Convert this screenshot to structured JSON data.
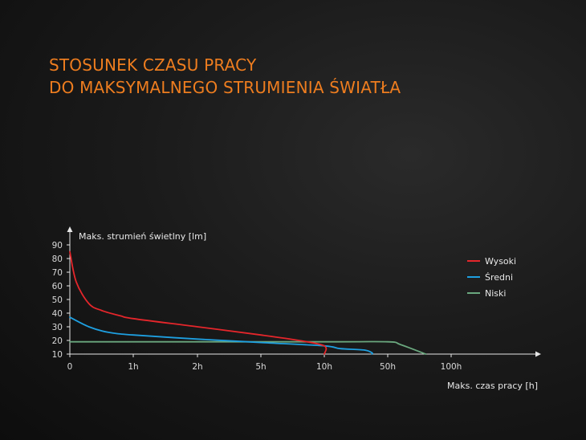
{
  "chart_data": {
    "type": "line",
    "title_lines": [
      "STOSUNEK CZASU PRACY",
      "DO MAKSYMALNEGO STRUMIENIA ŚWIATŁA"
    ],
    "xlabel": "Maks. czas pracy [h]",
    "ylabel": "Maks. strumień świetlny [lm]",
    "x_tick_labels": [
      "0",
      "1h",
      "2h",
      "5h",
      "10h",
      "50h",
      "100h"
    ],
    "y_ticks": [
      10,
      20,
      30,
      40,
      50,
      60,
      70,
      80,
      90
    ],
    "ylim": [
      10,
      90
    ],
    "x_scale": "nonlinear (ordinal tick spacing)",
    "legend_position": "top-right",
    "series": [
      {
        "name": "Wysoki",
        "color": "#e5262b",
        "points": [
          [
            0,
            85
          ],
          [
            0.1,
            63
          ],
          [
            0.3,
            47
          ],
          [
            0.5,
            42
          ],
          [
            0.8,
            38
          ],
          [
            1,
            36
          ],
          [
            2,
            30
          ],
          [
            5,
            24
          ],
          [
            8,
            20
          ],
          [
            10,
            16
          ],
          [
            10,
            10
          ]
        ]
      },
      {
        "name": "Średni",
        "color": "#1e9fe0",
        "points": [
          [
            0,
            37
          ],
          [
            0.3,
            30
          ],
          [
            0.6,
            26
          ],
          [
            1,
            24
          ],
          [
            2,
            21
          ],
          [
            5,
            18.5
          ],
          [
            10,
            16
          ],
          [
            20,
            14
          ],
          [
            35,
            13
          ],
          [
            40,
            11
          ],
          [
            40,
            10
          ]
        ]
      },
      {
        "name": "Niski",
        "color": "#6aa77e",
        "points": [
          [
            0,
            19
          ],
          [
            10,
            19
          ],
          [
            50,
            19
          ],
          [
            60,
            17
          ],
          [
            80,
            10
          ]
        ]
      }
    ]
  }
}
